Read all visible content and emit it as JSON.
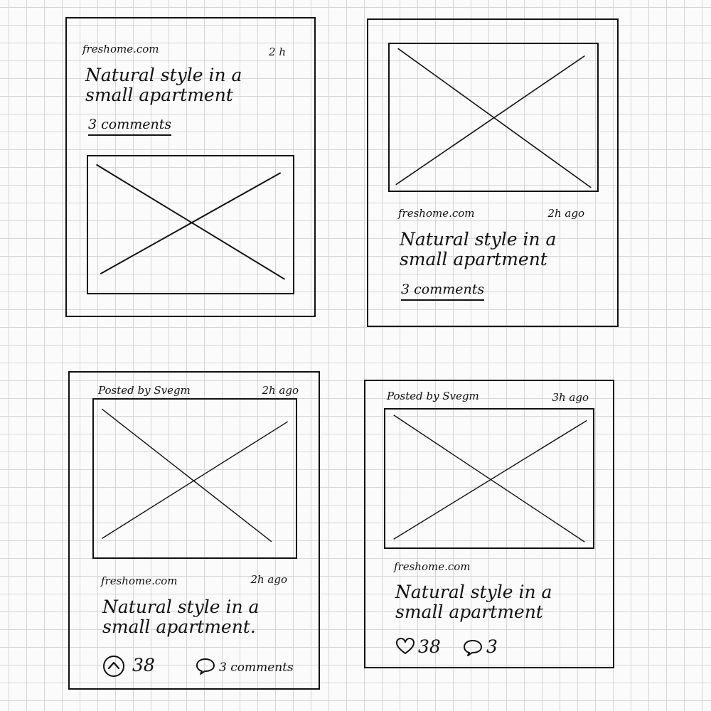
{
  "cards": [
    {
      "source": "freshome.com",
      "time": "2 h",
      "title_line1": "Natural style in a",
      "title_line2": "small apartment",
      "comments": "3 comments"
    },
    {
      "source": "freshome.com",
      "time": "2h ago",
      "title_line1": "Natural style in a",
      "title_line2": "small apartment",
      "comments": "3 comments"
    },
    {
      "posted_by": "Posted by Svegm",
      "time_top": "2h ago",
      "source": "freshome.com",
      "time": "2h ago",
      "title_line1": "Natural style in a",
      "title_line2": "small apartment.",
      "upvote_icon": "upvote-circle-icon",
      "upvotes": "38",
      "comment_icon": "comment-bubble-icon",
      "comments": "3 comments"
    },
    {
      "posted_by": "Posted by Svegm",
      "time_top": "3h ago",
      "source": "freshome.com",
      "title_line1": "Natural style in a",
      "title_line2": "small apartment",
      "like_icon": "heart-icon",
      "likes": "38",
      "comment_icon": "comment-bubble-icon",
      "comments": "3"
    }
  ]
}
